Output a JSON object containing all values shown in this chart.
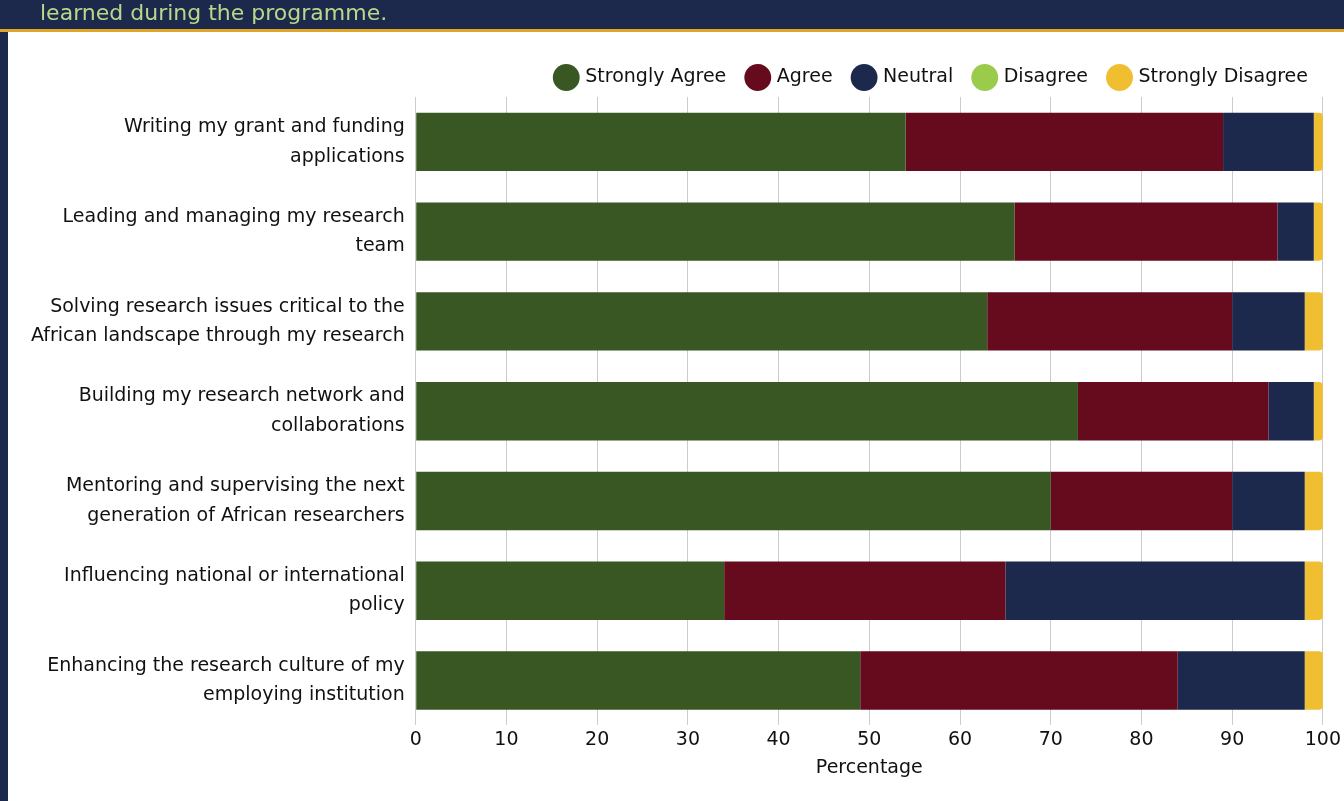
{
  "chart_data": {
    "type": "bar",
    "orientation": "horizontal",
    "stacked": true,
    "title": "learned during the programme.",
    "xlabel": "Percentage",
    "categories": [
      "Writing my grant and funding applications",
      "Leading and managing my research team",
      "Solving research issues critical to the African landscape through my research",
      "Building my research network and collaborations",
      "Mentoring and supervising the next generation of African researchers",
      "Influencing national or international policy",
      "Enhancing the research culture of my employing institution"
    ],
    "series": [
      {
        "name": "Strongly Agree",
        "color": "#385723",
        "values": [
          54,
          66,
          63,
          73,
          70,
          34,
          49
        ]
      },
      {
        "name": "Agree",
        "color": "#660a1d",
        "values": [
          35,
          29,
          27,
          21,
          20,
          31,
          35
        ]
      },
      {
        "name": "Neutral",
        "color": "#1c294d",
        "values": [
          10,
          4,
          8,
          5,
          8,
          33,
          14
        ]
      },
      {
        "name": "Disagree",
        "color": "#9bcb4b",
        "values": [
          0,
          0,
          0,
          0,
          0,
          0,
          0
        ]
      },
      {
        "name": "Strongly Disagree",
        "color": "#f0bf31",
        "values": [
          1,
          1,
          2,
          1,
          2,
          2,
          2
        ]
      }
    ],
    "xlim": [
      0,
      100
    ],
    "xticks": [
      0,
      10,
      20,
      30,
      40,
      50,
      60,
      70,
      80,
      90,
      100
    ],
    "grid": "x",
    "legend": "top right"
  }
}
